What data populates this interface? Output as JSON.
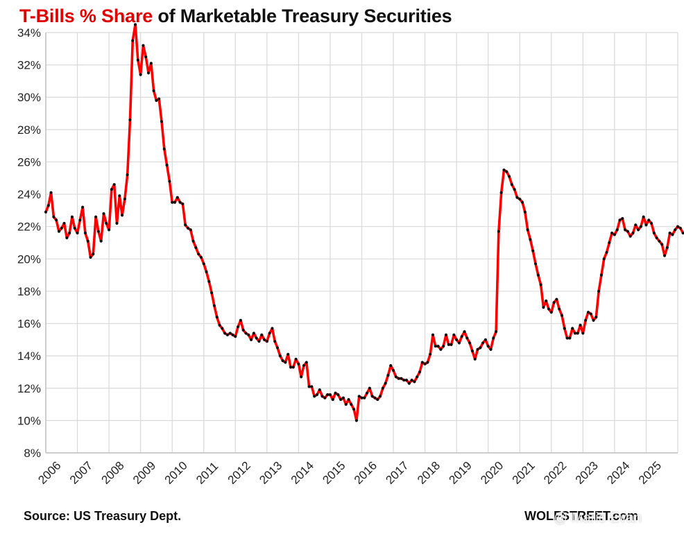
{
  "title": {
    "part1": "T-Bills % Share",
    "part2": " of Marketable Treasury Securities"
  },
  "source": "Source: US Treasury Dept.",
  "brand": "WOLFSTREET.com",
  "watermark": "@ Mario Evan",
  "colors": {
    "line": "#ff0000",
    "marker": "#111111",
    "grid": "#d9d9d9",
    "title_accent": "#e00000"
  },
  "chart_data": {
    "type": "line",
    "title": "T-Bills % Share of Marketable Treasury Securities",
    "xlabel": "",
    "ylabel": "",
    "ylim": [
      8,
      34
    ],
    "yticks": [
      8,
      10,
      12,
      14,
      16,
      18,
      20,
      22,
      24,
      26,
      28,
      30,
      32,
      34
    ],
    "ytick_labels": [
      "8%",
      "10%",
      "12%",
      "14%",
      "16%",
      "18%",
      "20%",
      "22%",
      "24%",
      "26%",
      "28%",
      "30%",
      "32%",
      "34%"
    ],
    "xlim": [
      2006.0,
      2026.0
    ],
    "xtick_labels": [
      "2006",
      "2007",
      "2008",
      "2009",
      "2010",
      "2011",
      "2012",
      "2013",
      "2014",
      "2015",
      "2016",
      "2017",
      "2018",
      "2019",
      "2020",
      "2021",
      "2022",
      "2023",
      "2024",
      "2025"
    ],
    "grid": true,
    "series": [
      {
        "name": "T-Bills % Share",
        "unit": "%",
        "start_year": 2006,
        "start_month": 1,
        "values": [
          22.9,
          23.3,
          24.1,
          22.6,
          22.4,
          21.7,
          21.9,
          22.2,
          21.3,
          21.6,
          22.6,
          21.9,
          21.6,
          22.4,
          23.2,
          21.6,
          21.1,
          20.1,
          20.3,
          22.6,
          21.7,
          21.1,
          22.8,
          22.2,
          21.8,
          24.3,
          24.6,
          22.2,
          23.9,
          22.7,
          23.7,
          25.2,
          28.6,
          33.5,
          34.5,
          32.3,
          31.4,
          33.2,
          32.5,
          31.5,
          32.1,
          30.4,
          29.8,
          29.9,
          28.5,
          26.8,
          25.8,
          24.8,
          23.5,
          23.5,
          23.8,
          23.5,
          23.4,
          22.1,
          21.9,
          21.8,
          21.1,
          20.7,
          20.3,
          20.1,
          19.7,
          19.2,
          18.6,
          17.9,
          17.1,
          16.4,
          15.9,
          15.7,
          15.4,
          15.3,
          15.4,
          15.3,
          15.2,
          15.8,
          16.2,
          15.6,
          15.4,
          15.3,
          15.0,
          15.4,
          15.1,
          14.9,
          15.3,
          15.0,
          14.9,
          15.4,
          15.7,
          14.9,
          14.5,
          14.0,
          13.7,
          13.6,
          14.1,
          13.3,
          13.3,
          13.8,
          13.5,
          12.7,
          13.4,
          13.6,
          12.1,
          12.1,
          11.5,
          11.6,
          11.9,
          11.5,
          11.4,
          11.6,
          11.6,
          11.3,
          11.7,
          11.6,
          11.3,
          11.4,
          11.0,
          11.3,
          11.0,
          10.7,
          10.0,
          11.5,
          11.4,
          11.4,
          11.7,
          12.0,
          11.5,
          11.4,
          11.3,
          11.5,
          12.0,
          12.3,
          12.8,
          13.4,
          13.1,
          12.7,
          12.6,
          12.6,
          12.5,
          12.5,
          12.3,
          12.5,
          12.4,
          12.7,
          13.0,
          13.6,
          13.5,
          13.6,
          14.1,
          15.3,
          14.6,
          14.6,
          14.4,
          14.6,
          15.3,
          14.7,
          14.7,
          15.3,
          15.0,
          14.8,
          15.2,
          15.5,
          15.1,
          14.8,
          14.3,
          13.8,
          14.4,
          14.5,
          14.8,
          15.0,
          14.6,
          14.4,
          15.1,
          15.5,
          21.7,
          24.1,
          25.5,
          25.4,
          25.1,
          24.6,
          24.3,
          23.8,
          23.7,
          23.5,
          22.9,
          21.8,
          21.2,
          20.5,
          19.7,
          19.0,
          18.4,
          17.0,
          17.4,
          16.9,
          16.7,
          17.3,
          17.5,
          16.9,
          16.5,
          15.7,
          15.1,
          15.1,
          15.7,
          15.4,
          15.4,
          15.9,
          15.4,
          16.2,
          16.7,
          16.6,
          16.2,
          16.4,
          18.0,
          19.0,
          20.0,
          20.4,
          21.0,
          21.6,
          21.5,
          21.8,
          22.4,
          22.5,
          21.8,
          21.7,
          21.4,
          21.6,
          22.1,
          21.8,
          22.0,
          22.6,
          22.1,
          22.4,
          22.2,
          21.6,
          21.3,
          21.1,
          20.9,
          20.2,
          20.7,
          21.6,
          21.5,
          21.8,
          22.0,
          21.9,
          21.6
        ]
      }
    ]
  }
}
